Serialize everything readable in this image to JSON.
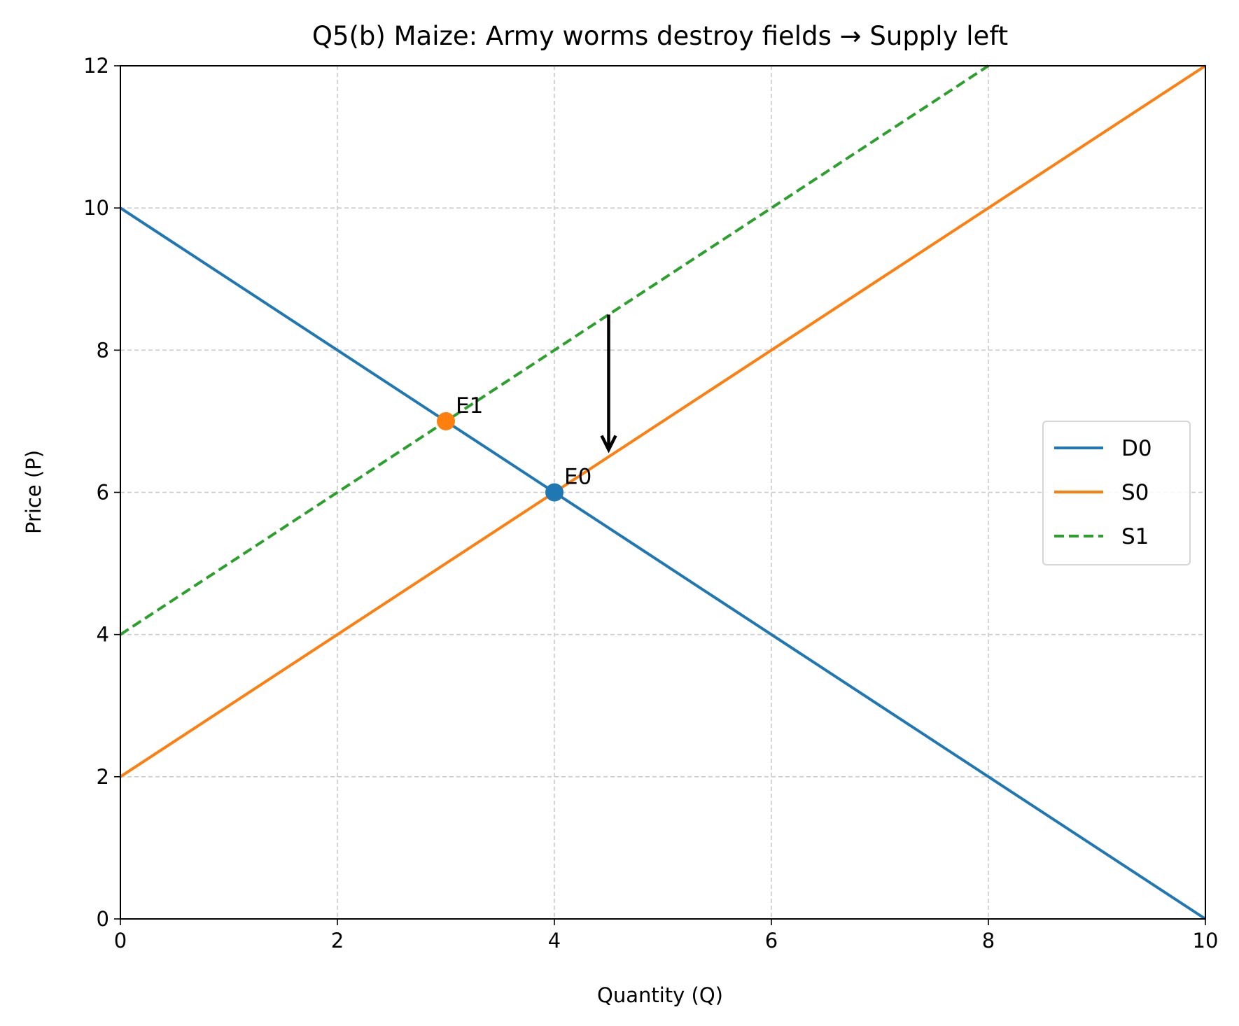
{
  "chart_data": {
    "type": "line",
    "title": "Q5(b) Maize: Army worms destroy fields → Supply left",
    "xlabel": "Quantity (Q)",
    "ylabel": "Price (P)",
    "xlim": [
      0,
      10
    ],
    "ylim": [
      0,
      12
    ],
    "xticks": [
      0,
      2,
      4,
      6,
      8,
      10
    ],
    "yticks": [
      0,
      2,
      4,
      6,
      8,
      10,
      12
    ],
    "grid": true,
    "legend_position": "center-right",
    "series": [
      {
        "name": "D0",
        "x": [
          0,
          10
        ],
        "y": [
          10,
          0
        ],
        "color": "#1f77b4",
        "style": "solid"
      },
      {
        "name": "S0",
        "x": [
          0,
          10
        ],
        "y": [
          2,
          12
        ],
        "color": "#ff7f0e",
        "style": "solid"
      },
      {
        "name": "S1",
        "x": [
          0,
          8
        ],
        "y": [
          4,
          12
        ],
        "color": "#2ca02c",
        "style": "dashed"
      }
    ],
    "points": [
      {
        "label": "E0",
        "x": 4,
        "y": 6,
        "color": "#1f77b4"
      },
      {
        "label": "E1",
        "x": 3,
        "y": 7,
        "color": "#ff7f0e"
      }
    ],
    "arrow": {
      "from": [
        4.5,
        8.5
      ],
      "to": [
        4.5,
        6.6
      ],
      "color": "#000000"
    }
  }
}
